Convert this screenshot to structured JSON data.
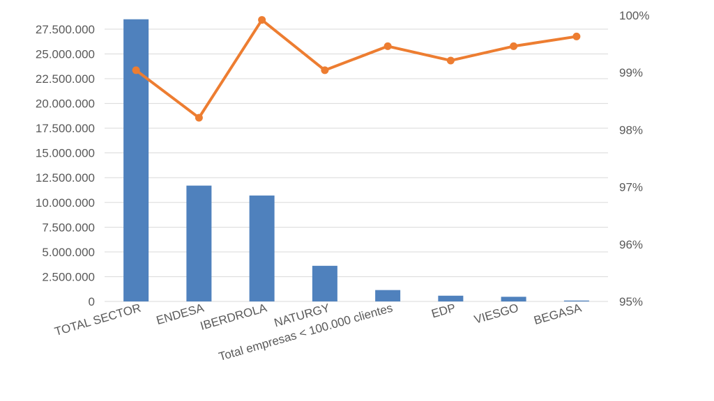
{
  "chart_data": {
    "type": "bar",
    "categories": [
      "TOTAL SECTOR",
      "ENDESA",
      "IBERDROLA",
      "NATURGY",
      "Total empresas < 100.000 clientes",
      "EDP",
      "VIESGO",
      "BEGASA"
    ],
    "series": [
      {
        "type": "bar",
        "axis": "left",
        "color": "#4f81bd",
        "values": [
          28500000,
          11700000,
          10700000,
          3600000,
          1150000,
          580000,
          470000,
          90000
        ]
      },
      {
        "type": "line",
        "axis": "right",
        "color": "#ed7d31",
        "values": [
          0.9904,
          0.9821,
          0.9992,
          0.9904,
          0.9946,
          0.9921,
          0.9946,
          0.9963
        ]
      }
    ],
    "left_axis": {
      "ylim": [
        0,
        28900000
      ],
      "ticks": [
        0,
        2500000,
        5000000,
        7500000,
        10000000,
        12500000,
        15000000,
        17500000,
        20000000,
        22500000,
        25000000,
        27500000
      ],
      "tick_labels": [
        "0",
        "2.500.000",
        "5.000.000",
        "7.500.000",
        "10.000.000",
        "12.500.000",
        "15.000.000",
        "17.500.000",
        "20.000.000",
        "22.500.000",
        "25.000.000",
        "27.500.000"
      ]
    },
    "right_axis": {
      "ylim": [
        0.95,
        1.0
      ],
      "ticks": [
        0.95,
        0.96,
        0.97,
        0.98,
        0.99,
        1.0
      ],
      "tick_labels": [
        "95%",
        "96%",
        "97%",
        "98%",
        "99%",
        "100%"
      ]
    },
    "grid": true,
    "legend": "none"
  }
}
